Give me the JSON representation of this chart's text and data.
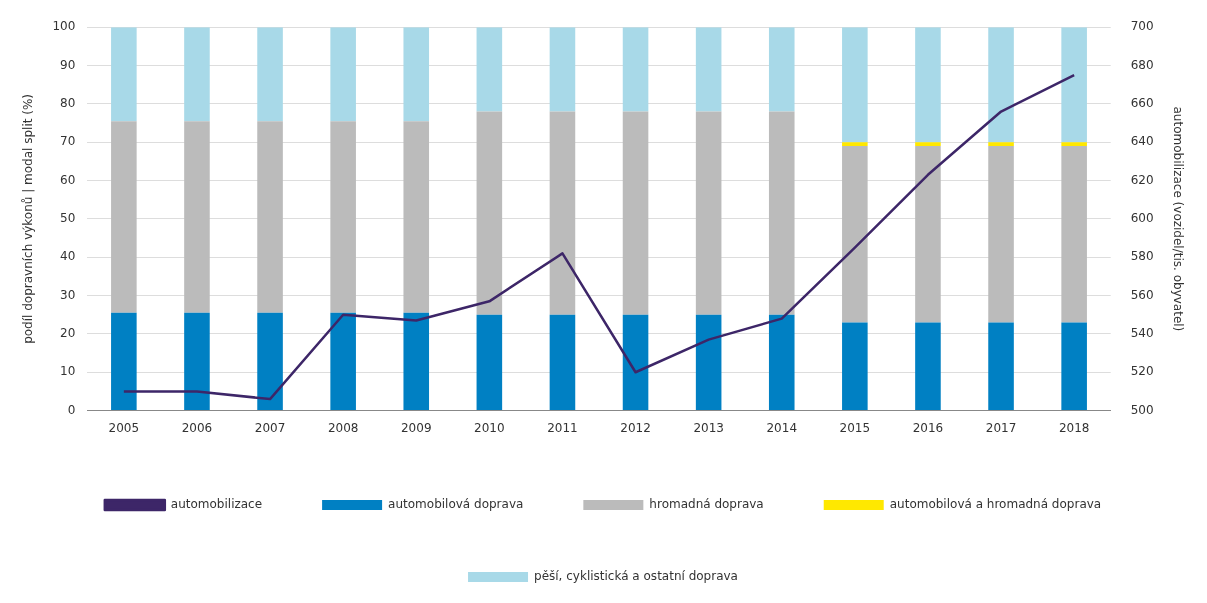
{
  "chart_data": {
    "type": "bar",
    "stacked": true,
    "categories": [
      "2005",
      "2006",
      "2007",
      "2008",
      "2009",
      "2010",
      "2011",
      "2012",
      "2013",
      "2014",
      "2015",
      "2016",
      "2017",
      "2018"
    ],
    "ylabel": "podíl dopravních výkonů | modal split (%)",
    "y2label": "automobilizace (vozidel/tis. obyvatel)",
    "ylim": [
      0,
      100
    ],
    "yticks": [
      0,
      10,
      20,
      30,
      40,
      50,
      60,
      70,
      80,
      90,
      100
    ],
    "y2lim": [
      500,
      700
    ],
    "y2ticks": [
      500,
      520,
      540,
      560,
      580,
      600,
      620,
      640,
      660,
      680,
      700
    ],
    "grid": "y",
    "legend": "bottom",
    "series": [
      {
        "name": "automobilová doprava",
        "color": "#0080c3",
        "values": [
          25.5,
          25.5,
          25.5,
          25.5,
          25.5,
          25,
          25,
          25,
          25,
          25,
          23,
          23,
          23,
          23
        ]
      },
      {
        "name": "hromadná doprava",
        "color": "#bbbbbb",
        "values": [
          50,
          50,
          50,
          50,
          50,
          53,
          53,
          53,
          53,
          53,
          46,
          46,
          46,
          46
        ]
      },
      {
        "name": "automobilová a hromadná doprava",
        "color": "#ffe800",
        "values": [
          0,
          0,
          0,
          0,
          0,
          0,
          0,
          0,
          0,
          0,
          1,
          1,
          1,
          1
        ]
      },
      {
        "name": "pěší, cyklistická a ostatní doprava",
        "color": "#a8d9e8",
        "values": [
          24.5,
          24.5,
          24.5,
          24.5,
          24.5,
          22,
          22,
          22,
          22,
          22,
          30,
          30,
          30,
          30
        ]
      },
      {
        "name": "automobilizace",
        "type": "line",
        "axis": "y2",
        "color": "#3d2668",
        "marker": "none",
        "values": [
          510,
          510,
          506,
          550,
          547,
          557,
          582,
          520,
          537,
          548,
          585,
          623,
          656,
          675
        ]
      }
    ]
  }
}
